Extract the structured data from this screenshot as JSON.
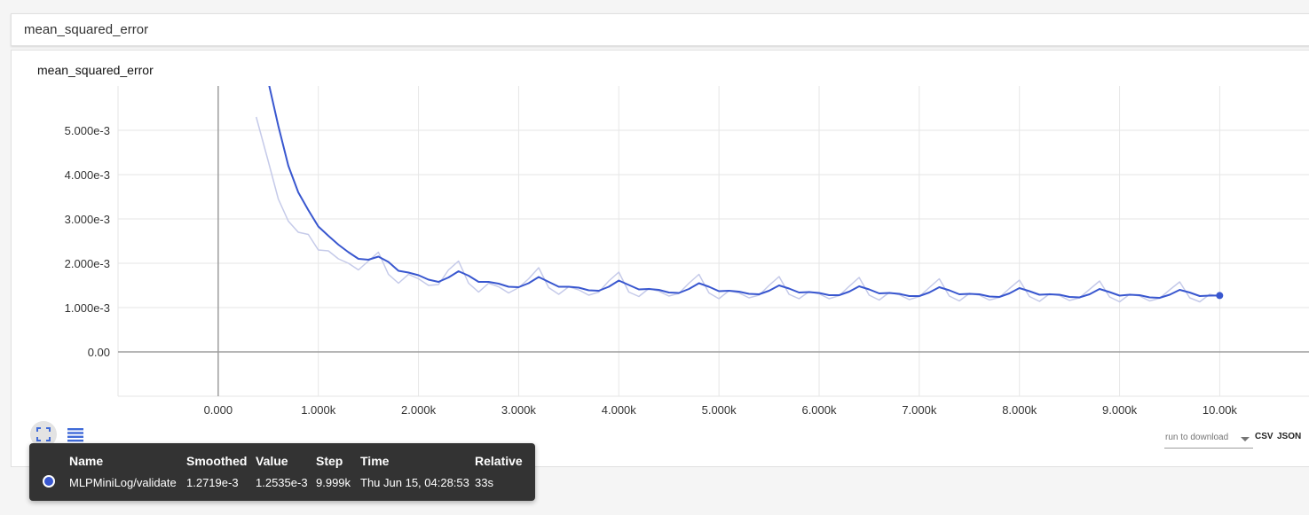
{
  "header": {
    "title": "mean_squared_error"
  },
  "chart_data": {
    "type": "line",
    "title": "mean_squared_error",
    "xlabel": "",
    "ylabel": "",
    "xlim": [
      -1000,
      10900
    ],
    "ylim": [
      -0.001,
      0.006
    ],
    "x_ticks": [
      0,
      1000,
      2000,
      3000,
      4000,
      5000,
      6000,
      7000,
      8000,
      9000,
      10000
    ],
    "x_tick_labels": [
      "0.000",
      "1.000k",
      "2.000k",
      "3.000k",
      "4.000k",
      "5.000k",
      "6.000k",
      "7.000k",
      "8.000k",
      "9.000k",
      "10.00k"
    ],
    "y_ticks": [
      0,
      0.001,
      0.002,
      0.003,
      0.004,
      0.005
    ],
    "y_tick_labels": [
      "0.00",
      "1.000e-3",
      "2.000e-3",
      "3.000e-3",
      "4.000e-3",
      "5.000e-3"
    ],
    "grid": true,
    "series": [
      {
        "name": "MLPMiniLog/validate",
        "style": "raw",
        "color": "#c5cae9",
        "x": [
          380,
          500,
          600,
          700,
          800,
          900,
          1000,
          1100,
          1200,
          1300,
          1400,
          1500,
          1600,
          1700,
          1800,
          1900,
          2000,
          2100,
          2200,
          2300,
          2400,
          2500,
          2600,
          2700,
          2800,
          2900,
          3000,
          3100,
          3200,
          3300,
          3400,
          3500,
          3600,
          3700,
          3800,
          3900,
          4000,
          4100,
          4200,
          4300,
          4400,
          4500,
          4600,
          4700,
          4800,
          4900,
          5000,
          5100,
          5200,
          5300,
          5400,
          5500,
          5600,
          5700,
          5800,
          5900,
          6000,
          6100,
          6200,
          6300,
          6400,
          6500,
          6600,
          6700,
          6800,
          6900,
          7000,
          7100,
          7200,
          7300,
          7400,
          7500,
          7600,
          7700,
          7800,
          7900,
          8000,
          8100,
          8200,
          8300,
          8400,
          8500,
          8600,
          8700,
          8800,
          8900,
          9000,
          9100,
          9200,
          9300,
          9400,
          9500,
          9600,
          9700,
          9800,
          9900,
          9999
        ],
        "y": [
          0.0053,
          0.0043,
          0.00345,
          0.00295,
          0.0027,
          0.00265,
          0.0023,
          0.00228,
          0.0021,
          0.002,
          0.00185,
          0.00205,
          0.00225,
          0.00175,
          0.00155,
          0.00175,
          0.00165,
          0.0015,
          0.00152,
          0.00185,
          0.00205,
          0.00155,
          0.00135,
          0.00155,
          0.00147,
          0.00133,
          0.00145,
          0.00165,
          0.0019,
          0.00145,
          0.0013,
          0.00147,
          0.0014,
          0.00128,
          0.00135,
          0.0016,
          0.0018,
          0.00135,
          0.00125,
          0.00143,
          0.00137,
          0.00126,
          0.00132,
          0.00155,
          0.00175,
          0.00133,
          0.0012,
          0.00138,
          0.00133,
          0.00122,
          0.00128,
          0.0015,
          0.0017,
          0.0013,
          0.0012,
          0.00136,
          0.00131,
          0.0012,
          0.00127,
          0.00148,
          0.00168,
          0.00128,
          0.00117,
          0.00134,
          0.00129,
          0.00118,
          0.00125,
          0.00145,
          0.00165,
          0.00126,
          0.00115,
          0.00132,
          0.00128,
          0.00117,
          0.00123,
          0.00143,
          0.00162,
          0.00125,
          0.00114,
          0.00131,
          0.00127,
          0.00116,
          0.00122,
          0.00141,
          0.0016,
          0.00124,
          0.00113,
          0.0013,
          0.00126,
          0.00115,
          0.00121,
          0.0014,
          0.00158,
          0.00122,
          0.00113,
          0.0013,
          0.00125
        ]
      },
      {
        "name": "MLPMiniLog/validate",
        "style": "smoothed",
        "color": "#3957cf",
        "x": [
          380,
          500,
          600,
          700,
          800,
          900,
          1000,
          1100,
          1200,
          1300,
          1400,
          1500,
          1600,
          1700,
          1800,
          1900,
          2000,
          2100,
          2200,
          2300,
          2400,
          2500,
          2600,
          2700,
          2800,
          2900,
          3000,
          3100,
          3200,
          3300,
          3400,
          3500,
          3600,
          3700,
          3800,
          3900,
          4000,
          4100,
          4200,
          4300,
          4400,
          4500,
          4600,
          4700,
          4800,
          4900,
          5000,
          5100,
          5200,
          5300,
          5400,
          5500,
          5600,
          5700,
          5800,
          5900,
          6000,
          6100,
          6200,
          6300,
          6400,
          6500,
          6600,
          6700,
          6800,
          6900,
          7000,
          7100,
          7200,
          7300,
          7400,
          7500,
          7600,
          7700,
          7800,
          7900,
          8000,
          8100,
          8200,
          8300,
          8400,
          8500,
          8600,
          8700,
          8800,
          8900,
          9000,
          9100,
          9200,
          9300,
          9400,
          9500,
          9600,
          9700,
          9800,
          9900,
          9999
        ],
        "y": [
          0.0061,
          0.0061,
          0.0051,
          0.0042,
          0.0036,
          0.0032,
          0.00283,
          0.00262,
          0.00242,
          0.00225,
          0.0021,
          0.00208,
          0.00215,
          0.00203,
          0.00183,
          0.00179,
          0.00173,
          0.00163,
          0.00158,
          0.00168,
          0.00182,
          0.00172,
          0.00158,
          0.00158,
          0.00154,
          0.00147,
          0.00146,
          0.00155,
          0.00169,
          0.00158,
          0.00147,
          0.00147,
          0.00145,
          0.00139,
          0.00138,
          0.00147,
          0.00161,
          0.00151,
          0.00141,
          0.00142,
          0.0014,
          0.00134,
          0.00133,
          0.00142,
          0.00155,
          0.00147,
          0.00137,
          0.00138,
          0.00136,
          0.00131,
          0.0013,
          0.00138,
          0.0015,
          0.00143,
          0.00134,
          0.00135,
          0.00133,
          0.00128,
          0.00128,
          0.00136,
          0.00148,
          0.00141,
          0.00132,
          0.00133,
          0.00131,
          0.00126,
          0.00126,
          0.00134,
          0.00146,
          0.00139,
          0.0013,
          0.00131,
          0.0013,
          0.00125,
          0.00124,
          0.00132,
          0.00144,
          0.00137,
          0.00129,
          0.0013,
          0.00129,
          0.00124,
          0.00123,
          0.0013,
          0.00142,
          0.00135,
          0.00127,
          0.00129,
          0.00128,
          0.00123,
          0.00122,
          0.00129,
          0.0014,
          0.00134,
          0.00126,
          0.00127,
          0.001272
        ]
      }
    ]
  },
  "controls": {
    "expand_icon": "fullscreen-icon",
    "list_icon": "list-icon",
    "download_placeholder": "run to download",
    "csv_label": "CSV",
    "json_label": "JSON"
  },
  "tooltip": {
    "headers": {
      "name": "Name",
      "smoothed": "Smoothed",
      "value": "Value",
      "step": "Step",
      "time": "Time",
      "relative": "Relative"
    },
    "row": {
      "color": "#3957cf",
      "name": "MLPMiniLog/validate",
      "smoothed": "1.2719e-3",
      "value": "1.2535e-3",
      "step": "9.999k",
      "time": "Thu Jun 15, 04:28:53",
      "relative": "33s"
    }
  }
}
